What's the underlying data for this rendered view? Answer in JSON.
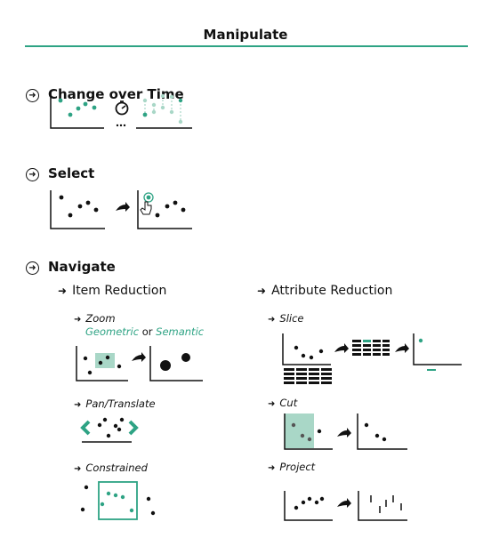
{
  "title": "Manipulate",
  "sections": {
    "change": {
      "label": "Change over Time"
    },
    "select": {
      "label": "Select"
    },
    "navigate": {
      "label": "Navigate"
    }
  },
  "subsections": {
    "item_reduction": "Item Reduction",
    "attribute_reduction": "Attribute Reduction"
  },
  "techniques": {
    "zoom": "Zoom",
    "geometric": "Geometric",
    "or": "or",
    "semantic": "Semantic",
    "pan": "Pan/Translate",
    "constrained": "Constrained",
    "slice": "Slice",
    "cut": "Cut",
    "project": "Project"
  },
  "ellipsis": "...",
  "colors": {
    "accent": "#2ea384",
    "accent_light": "#a9d7c7",
    "ink": "#111111"
  }
}
